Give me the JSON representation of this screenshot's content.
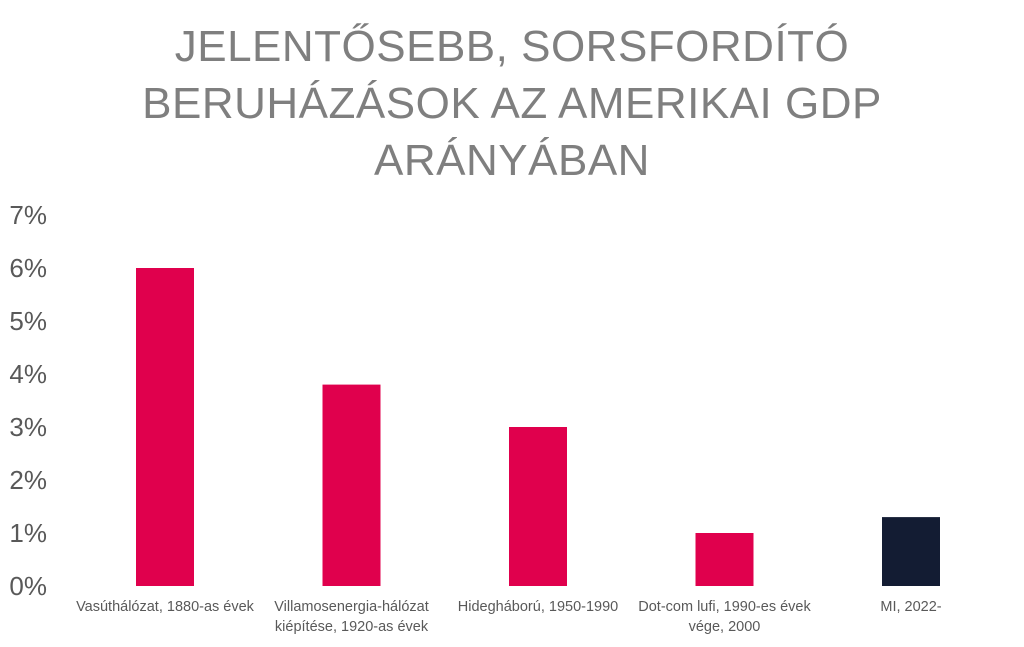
{
  "chart_data": {
    "type": "bar",
    "title_lines": [
      "JELENTŐSEBB, SORSFORDÍTÓ",
      "BERUHÁZÁSOK AZ AMERIKAI GDP",
      "ARÁNYÁBAN"
    ],
    "categories": [
      [
        "Vasúthálózat, 1880-as évek"
      ],
      [
        "Villamosenergia-hálózat",
        "kiépítése, 1920-as évek"
      ],
      [
        "Hidegháború, 1950-1990"
      ],
      [
        "Dot-com lufi, 1990-es évek",
        "vége, 2000"
      ],
      [
        "MI, 2022-"
      ]
    ],
    "values": [
      6.0,
      3.8,
      3.0,
      1.0,
      1.3
    ],
    "bar_colors": [
      "#e0004d",
      "#e0004d",
      "#e0004d",
      "#e0004d",
      "#131c33"
    ],
    "ylim": [
      0,
      7
    ],
    "yticks": [
      0,
      1,
      2,
      3,
      4,
      5,
      6,
      7
    ],
    "ytick_labels": [
      "0%",
      "1%",
      "2%",
      "3%",
      "4%",
      "5%",
      "6%",
      "7%"
    ],
    "grid": false,
    "xlabel": "",
    "ylabel": ""
  }
}
